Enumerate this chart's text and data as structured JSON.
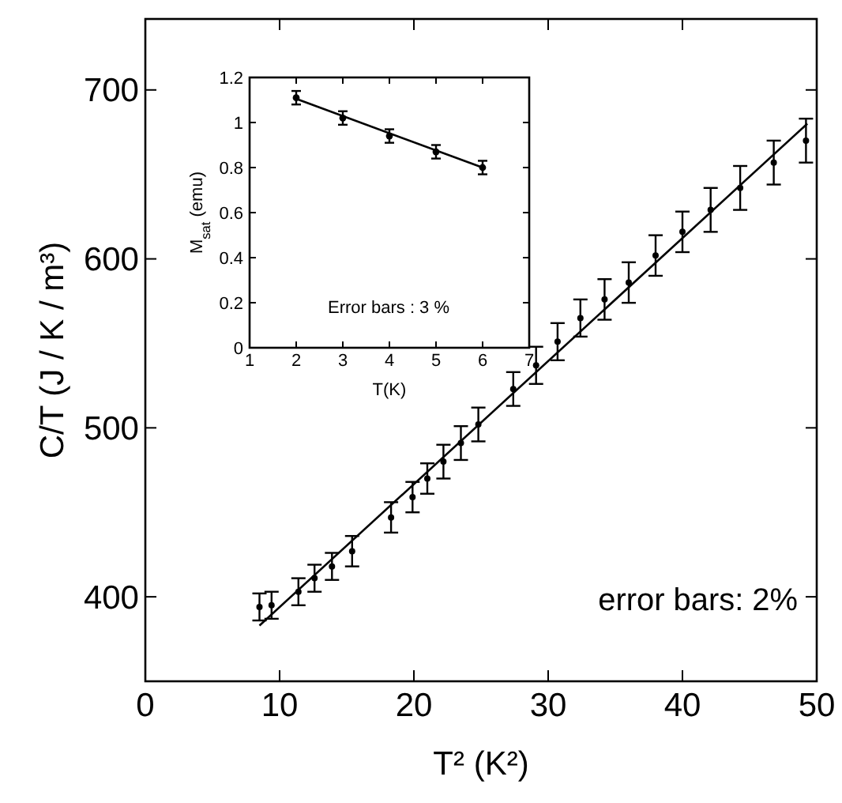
{
  "chart_data": [
    {
      "type": "scatter",
      "xlabel": "T² (K²)",
      "ylabel": "C/T (J / K / m³)",
      "xlim": [
        0,
        50
      ],
      "ylim": [
        350,
        742
      ],
      "xticks": [
        0,
        10,
        20,
        30,
        40,
        50
      ],
      "yticks": [
        400,
        500,
        600,
        700
      ],
      "annotations": [
        "error bars: 2%"
      ],
      "series": [
        {
          "marker": "circle",
          "color": "#000000",
          "x": [
            8.5,
            9.4,
            11.4,
            12.6,
            13.9,
            15.4,
            18.3,
            19.9,
            21.0,
            22.2,
            23.5,
            24.8,
            27.4,
            29.1,
            30.7,
            32.4,
            34.2,
            36.0,
            38.0,
            40.0,
            42.1,
            44.3,
            46.8,
            49.2
          ],
          "values": [
            394,
            395,
            403,
            411,
            418,
            427,
            447,
            459,
            470,
            480,
            491,
            502,
            523,
            537,
            551,
            565,
            576,
            586,
            602,
            616,
            629,
            642,
            657,
            670
          ],
          "errors": [
            8,
            8,
            8,
            8,
            8,
            9,
            9,
            9,
            9,
            10,
            10,
            10,
            10,
            11,
            11,
            11,
            12,
            12,
            12,
            12,
            13,
            13,
            13,
            13
          ]
        },
        {
          "type": "line",
          "color": "#000000",
          "line_style": "solid",
          "x": [
            8.5,
            49.3
          ],
          "values": [
            383,
            680
          ]
        }
      ]
    },
    {
      "type": "scatter",
      "xlabel": "T(K)",
      "ylabel": "M$_{sat}$ (emu)",
      "xlim": [
        1,
        7
      ],
      "ylim": [
        0,
        1.2
      ],
      "xticks": [
        1,
        2,
        3,
        4,
        5,
        6,
        7
      ],
      "yticks": [
        0,
        {
          "value": 0.2,
          "label": "0.2"
        },
        {
          "value": 0.4,
          "label": "0.4"
        },
        {
          "value": 0.6,
          "label": "0.6"
        },
        {
          "value": 0.8,
          "label": "0.8"
        },
        1,
        {
          "value": 1.2,
          "label": "1.2"
        }
      ],
      "annotations": [
        "Error bars : 3 %"
      ],
      "series": [
        {
          "marker": "circle",
          "color": "#000000",
          "x": [
            2,
            3,
            4,
            5,
            6
          ],
          "values": [
            1.11,
            1.02,
            0.94,
            0.87,
            0.8
          ],
          "errors": [
            0.03,
            0.03,
            0.03,
            0.03,
            0.03
          ]
        },
        {
          "type": "line",
          "color": "#000000",
          "line_style": "solid",
          "x": [
            2,
            6
          ],
          "values": [
            1.105,
            0.8
          ]
        }
      ]
    }
  ]
}
